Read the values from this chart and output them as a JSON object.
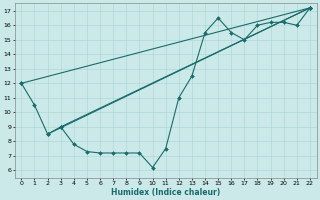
{
  "xlabel": "Humidex (Indice chaleur)",
  "ylabel": "",
  "bg_color": "#cce9e9",
  "line_color": "#1a6b6b",
  "grid_color": "#b0d8d8",
  "xlim": [
    -0.5,
    22.5
  ],
  "ylim": [
    5.5,
    17.5
  ],
  "yticks": [
    6,
    7,
    8,
    9,
    10,
    11,
    12,
    13,
    14,
    15,
    16,
    17
  ],
  "xticks": [
    0,
    1,
    2,
    3,
    4,
    5,
    6,
    7,
    8,
    9,
    10,
    11,
    12,
    13,
    14,
    15,
    16,
    17,
    18,
    19,
    20,
    21,
    22
  ],
  "lines": [
    {
      "x": [
        0,
        1,
        2,
        3,
        4,
        5,
        6,
        7,
        8,
        9,
        10,
        11,
        12,
        13,
        14,
        15,
        16,
        17,
        18,
        19,
        20,
        21,
        22
      ],
      "y": [
        12,
        10.5,
        8.5,
        9.0,
        7.8,
        7.3,
        7.2,
        7.2,
        7.2,
        7.2,
        6.2,
        7.5,
        11.0,
        12.5,
        15.5,
        16.5,
        15.5,
        15.0,
        16.0,
        16.2,
        16.2,
        16.0,
        17.2
      ]
    },
    {
      "x": [
        0,
        22
      ],
      "y": [
        12,
        17.2
      ]
    },
    {
      "x": [
        3,
        22
      ],
      "y": [
        9.0,
        17.2
      ]
    },
    {
      "x": [
        2,
        22
      ],
      "y": [
        8.5,
        17.2
      ]
    }
  ]
}
